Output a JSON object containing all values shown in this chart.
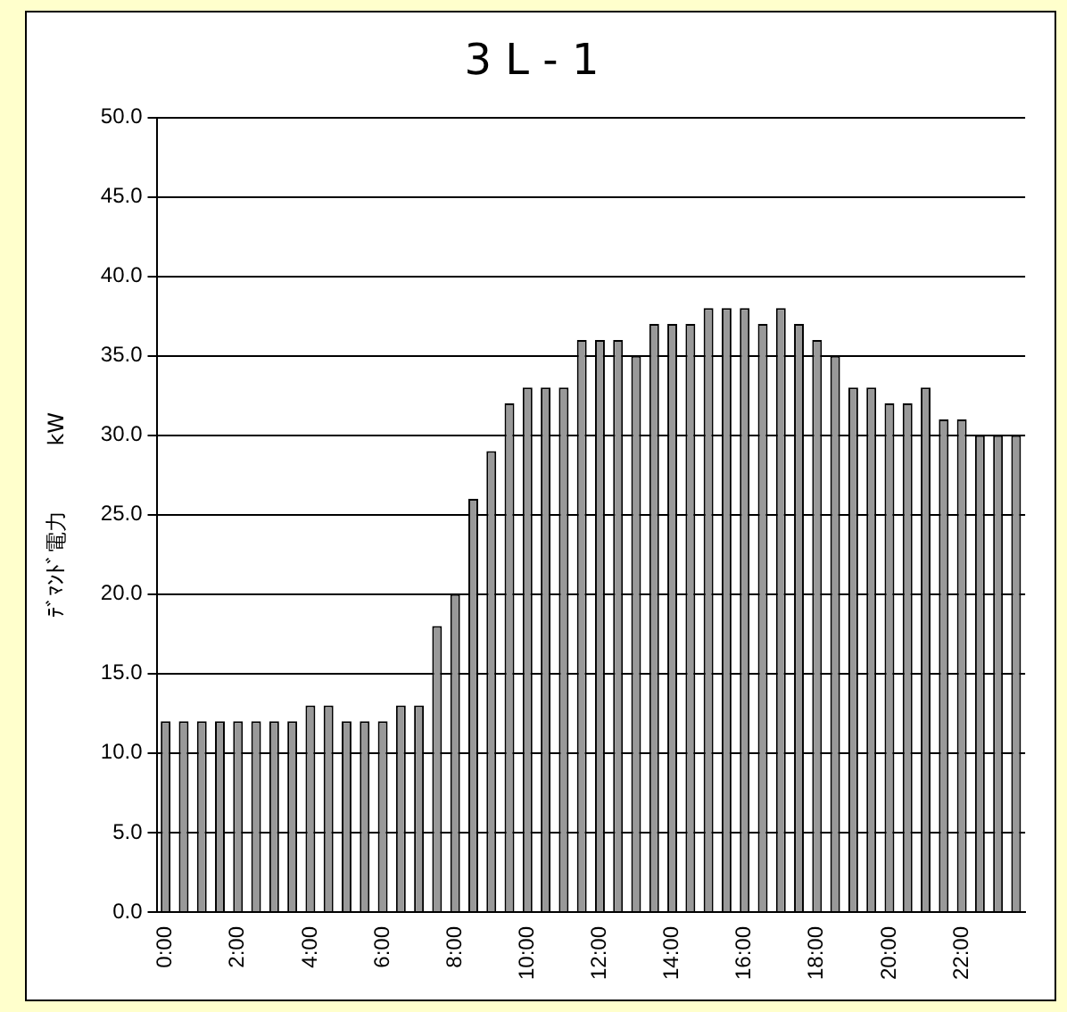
{
  "chart_data": {
    "type": "bar",
    "title": "3 L - 1",
    "ylabel": "ﾃﾞﾏﾝﾄﾞ電力　　　kW",
    "categories": [
      "0:00",
      null,
      null,
      null,
      "2:00",
      null,
      null,
      null,
      "4:00",
      null,
      null,
      null,
      "6:00",
      null,
      null,
      null,
      "8:00",
      null,
      null,
      null,
      "10:00",
      null,
      null,
      null,
      "12:00",
      null,
      null,
      null,
      "14:00",
      null,
      null,
      null,
      "16:00",
      null,
      null,
      null,
      "18:00",
      null,
      null,
      null,
      "20:00",
      null,
      null,
      null,
      "22:00",
      null,
      null,
      null
    ],
    "values": [
      12,
      12,
      12,
      12,
      12,
      12,
      12,
      12,
      13,
      13,
      12,
      12,
      12,
      13,
      13,
      18,
      20,
      26,
      29,
      32,
      33,
      33,
      33,
      36,
      36,
      36,
      35,
      37,
      37,
      37,
      38,
      38,
      38,
      37,
      38,
      37,
      36,
      35,
      33,
      33,
      32,
      32,
      33,
      31,
      31,
      30,
      30,
      30
    ],
    "color": "#999999",
    "ylim": [
      0,
      50
    ],
    "yticks": [
      {
        "value": 0,
        "label": "0.0"
      },
      {
        "value": 5,
        "label": "5.0"
      },
      {
        "value": 10,
        "label": "10.0"
      },
      {
        "value": 15,
        "label": "15.0"
      },
      {
        "value": 20,
        "label": "20.0"
      },
      {
        "value": 25,
        "label": "25.0"
      },
      {
        "value": 30,
        "label": "30.0"
      },
      {
        "value": 35,
        "label": "35.0"
      },
      {
        "value": 40,
        "label": "40.0"
      },
      {
        "value": 45,
        "label": "45.0"
      },
      {
        "value": 50,
        "label": "50.0"
      }
    ],
    "grid": "y",
    "legend": false
  }
}
